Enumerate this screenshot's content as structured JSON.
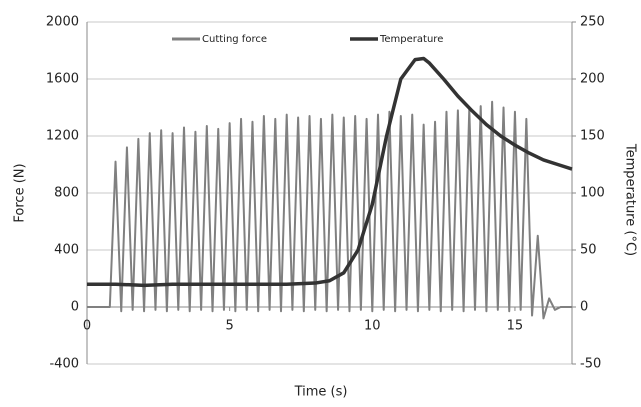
{
  "chart_data": {
    "type": "line",
    "xlabel": "Time (s)",
    "ylabel": "Force (N)",
    "y2label": "Temperature (°C)",
    "xlim": [
      0,
      17
    ],
    "xticks": [
      0,
      5,
      10,
      15
    ],
    "ylim": [
      -400,
      2000
    ],
    "yticks": [
      -400,
      0,
      400,
      800,
      1200,
      1600,
      2000
    ],
    "y2lim": [
      -50,
      250
    ],
    "y2ticks": [
      -50,
      0,
      50,
      100,
      150,
      200,
      250
    ],
    "grid": true,
    "legend": "top",
    "series": [
      {
        "name": "Cutting force",
        "color": "#808080",
        "x": [
          0,
          0.2,
          0.4,
          0.6,
          0.8,
          1.0,
          1.2,
          1.4,
          1.6,
          1.8,
          2.0,
          2.2,
          2.4,
          2.6,
          2.8,
          3.0,
          3.2,
          3.4,
          3.6,
          3.8,
          4.0,
          4.2,
          4.4,
          4.6,
          4.8,
          5.0,
          5.2,
          5.4,
          5.6,
          5.8,
          6.0,
          6.2,
          6.4,
          6.6,
          6.8,
          7.0,
          7.2,
          7.4,
          7.6,
          7.8,
          8.0,
          8.2,
          8.4,
          8.6,
          8.8,
          9.0,
          9.2,
          9.4,
          9.6,
          9.8,
          10.0,
          10.2,
          10.4,
          10.6,
          10.8,
          11.0,
          11.2,
          11.4,
          11.6,
          11.8,
          12.0,
          12.2,
          12.4,
          12.6,
          12.8,
          13.0,
          13.2,
          13.4,
          13.6,
          13.8,
          14.0,
          14.2,
          14.4,
          14.6,
          14.8,
          15.0,
          15.2,
          15.4,
          15.6,
          15.8,
          16.0,
          16.2,
          16.4,
          16.6,
          16.8,
          17.0
        ],
        "values": [
          0,
          0,
          0,
          0,
          0,
          1020,
          -30,
          1120,
          -20,
          1180,
          -30,
          1220,
          -20,
          1240,
          -30,
          1220,
          -20,
          1260,
          -30,
          1230,
          -20,
          1270,
          -30,
          1250,
          -20,
          1290,
          -30,
          1320,
          -20,
          1300,
          -30,
          1340,
          -20,
          1320,
          -30,
          1350,
          -20,
          1330,
          -30,
          1340,
          -20,
          1320,
          -30,
          1350,
          -20,
          1330,
          -30,
          1340,
          -20,
          1320,
          -30,
          1350,
          -20,
          1370,
          -30,
          1340,
          -20,
          1350,
          -30,
          1280,
          -20,
          1300,
          -30,
          1370,
          -20,
          1380,
          -30,
          1390,
          -20,
          1410,
          -30,
          1440,
          -20,
          1400,
          -30,
          1370,
          -20,
          1320,
          -60,
          500,
          -80,
          60,
          -20,
          0,
          0,
          0
        ]
      },
      {
        "name": "Temperature",
        "color": "#333333",
        "axis": "y2",
        "x": [
          0,
          1,
          2,
          3,
          4,
          5,
          6,
          7,
          8,
          8.5,
          9,
          9.5,
          10,
          10.5,
          11,
          11.5,
          11.8,
          12,
          12.5,
          13,
          13.5,
          14,
          14.5,
          15,
          15.5,
          16,
          16.5,
          17
        ],
        "values": [
          20,
          20,
          19,
          20,
          20,
          20,
          20,
          20,
          21,
          23,
          30,
          50,
          90,
          150,
          200,
          217,
          218,
          214,
          200,
          185,
          172,
          160,
          150,
          142,
          135,
          129,
          125,
          121
        ]
      }
    ]
  }
}
